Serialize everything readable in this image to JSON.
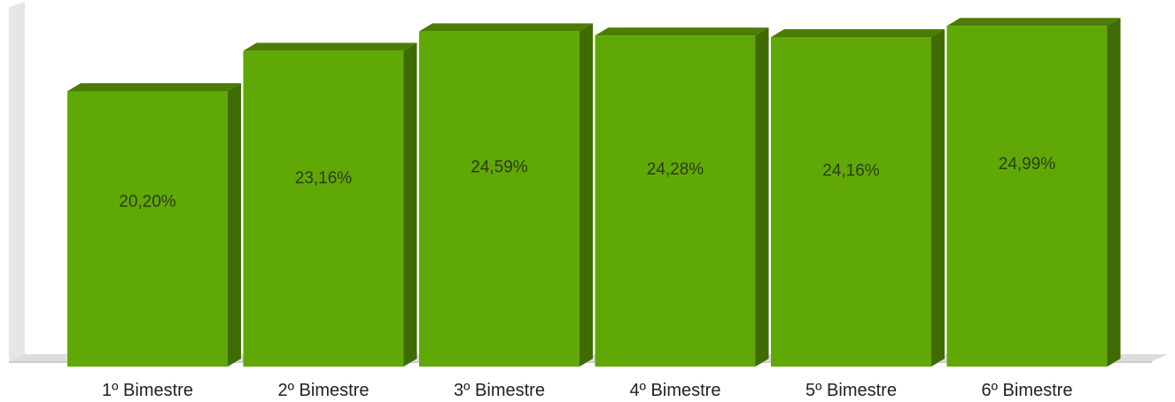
{
  "chart_data": {
    "type": "bar",
    "title": "",
    "xlabel": "",
    "ylabel": "",
    "categories": [
      "1º Bimestre",
      "2º Bimestre",
      "3º Bimestre",
      "4º Bimestre",
      "5º Bimestre",
      "6º Bimestre"
    ],
    "values": [
      20.2,
      23.16,
      24.59,
      24.28,
      24.16,
      24.99
    ],
    "value_labels": [
      "20,20%",
      "23,16%",
      "24,59%",
      "24,28%",
      "24,16%",
      "24,99%"
    ],
    "ylim": [
      0,
      26
    ],
    "grid": false,
    "legend": "none",
    "style": "3d",
    "colors": {
      "bar_front": "#5fa806",
      "bar_top": "#4c7c02",
      "bar_side": "#3f6b02",
      "wall": "#e4e4e4",
      "floor": "#dcdcdc",
      "value_text": "#2f3b12",
      "category_text": "#222222"
    }
  }
}
